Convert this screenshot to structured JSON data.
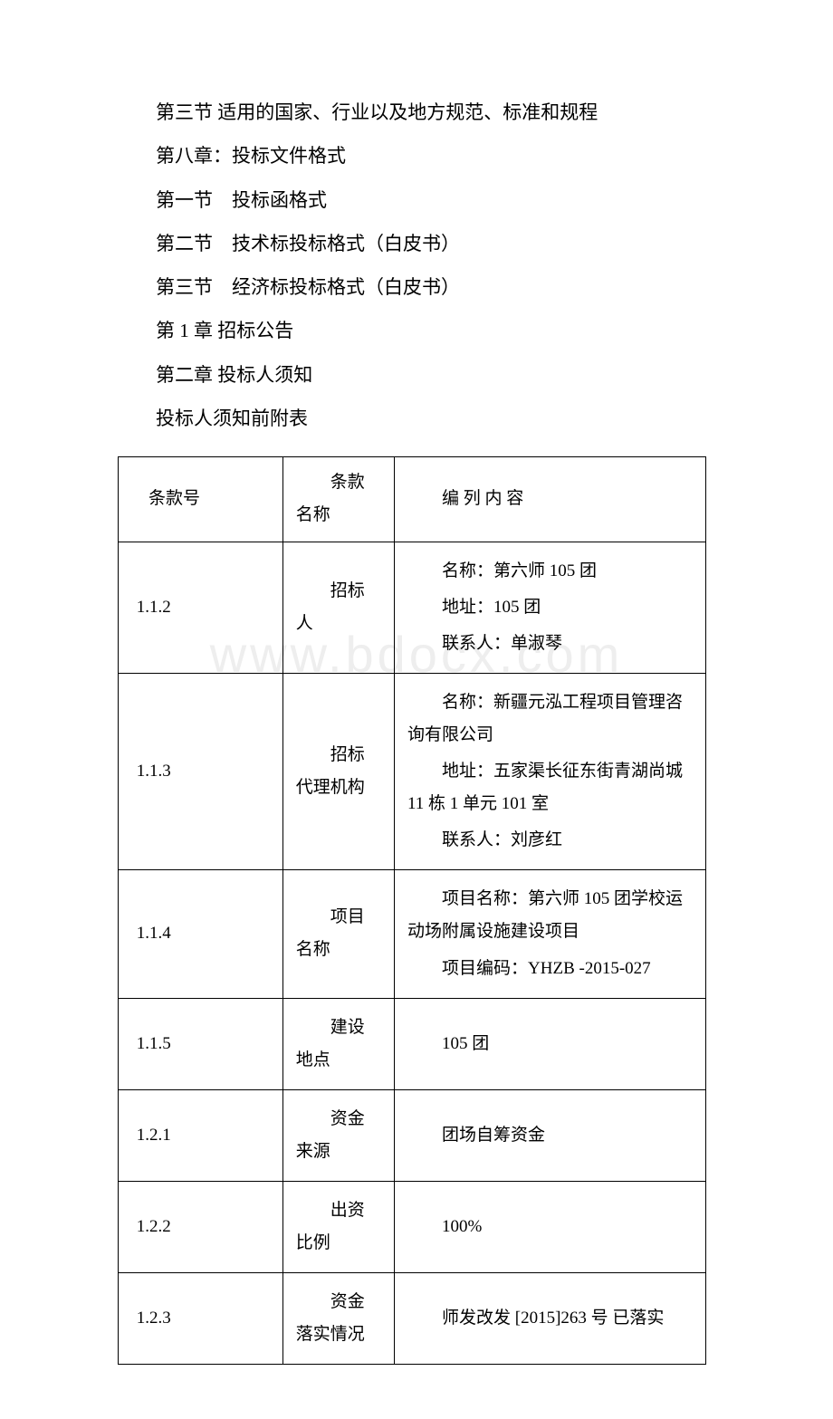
{
  "toc": {
    "l1": "第三节 适用的国家、行业以及地方规范、标准和规程",
    "l2": "第八章：投标文件格式",
    "l3": "第一节　投标函格式",
    "l4": "第二节　技术标投标格式（白皮书）",
    "l5": "第三节　经济标投标格式（白皮书）",
    "l6": "第 1 章  招标公告",
    "l7": "第二章 投标人须知",
    "l8": "投标人须知前附表"
  },
  "watermark": "www.bdocx.com",
  "header": {
    "col1": "条款号",
    "col2_l1": "条款",
    "col2_l2": "名称",
    "col3": "编 列 内 容"
  },
  "rows": [
    {
      "num": "1.1.2",
      "name_l1": "招标",
      "name_l2": "人",
      "content": [
        "名称：第六师 105 团",
        "地址：105 团",
        "联系人：单淑琴"
      ]
    },
    {
      "num": "1.1.3",
      "name_l1": "招标",
      "name_l2": "代理机构",
      "content": [
        "名称：新疆元泓工程项目管理咨询有限公司",
        "地址：五家渠长征东街青湖尚城 11 栋 1 单元 101 室",
        "联系人：刘彦红"
      ]
    },
    {
      "num": "1.1.4",
      "name_l1": "项目",
      "name_l2": "名称",
      "content": [
        "项目名称：第六师 105 团学校运动场附属设施建设项目",
        "项目编码：YHZB -2015-027"
      ]
    },
    {
      "num": "1.1.5",
      "name_l1": "建设",
      "name_l2": "地点",
      "content": [
        "105 团"
      ]
    },
    {
      "num": "1.2.1",
      "name_l1": "资金",
      "name_l2": "来源",
      "content": [
        "团场自筹资金"
      ]
    },
    {
      "num": "1.2.2",
      "name_l1": "出资",
      "name_l2": "比例",
      "content": [
        "100%"
      ]
    },
    {
      "num": "1.2.3",
      "name_l1": "资金",
      "name_l2": "落实情况",
      "content": [
        "师发改发 [2015]263 号 已落实"
      ]
    }
  ]
}
